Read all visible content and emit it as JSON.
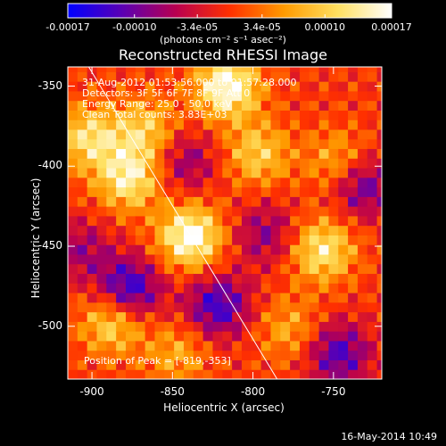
{
  "footer": {
    "timestamp": "16-May-2014 10:49"
  },
  "colorbar": {
    "units_label": "(photons cm⁻² s⁻¹ asec⁻²)",
    "ticks": [
      "-0.00017",
      "-0.00010",
      "-3.4e-05",
      "3.4e-05",
      "0.00010",
      "0.00017"
    ],
    "tick_values": [
      -0.00017,
      -0.0001,
      -3.4e-05,
      3.4e-05,
      0.0001,
      0.00017
    ],
    "range": [
      -0.00017,
      0.00017
    ],
    "colors": [
      "#0000ff",
      "#5a00b4",
      "#b80050",
      "#ff3000",
      "#ff9a00",
      "#ffe060",
      "#ffffff"
    ]
  },
  "info": {
    "line1": "31-Aug-2012 01:53:56.000 to 01:57:28.000",
    "line2": "Detectors: 3F 5F 6F 7F 8F 9F Att 0",
    "line3": "Energy Range: 25.0 - 50.0 keV",
    "line4": "Clean    Total counts: 3.83E+03",
    "peak": "Position of Peak = [-819,-353]"
  },
  "chart_data": {
    "type": "heatmap",
    "title": "Reconstructed RHESSI Image",
    "xlabel": "Heliocentric X (arcsec)",
    "ylabel": "Heliocentric Y (arcsec)",
    "xlim": [
      -915,
      -720
    ],
    "ylim": [
      -533,
      -338
    ],
    "xticks": [
      -900,
      -850,
      -800,
      -750
    ],
    "xtick_labels": [
      "-900",
      "-850",
      "-800",
      "-750"
    ],
    "yticks": [
      -350,
      -400,
      -450,
      -500
    ],
    "ytick_labels": [
      "-350",
      "-400",
      "-450",
      "-500"
    ],
    "peak_position": [
      -819,
      -353
    ],
    "limb_line": [
      [
        -905,
        -333
      ],
      [
        -785,
        -533
      ]
    ],
    "colormap": "rhessi-blue-white",
    "bright_sources": [
      {
        "x": -842,
        "y": -447,
        "intensity": 0.00017
      },
      {
        "x": -819,
        "y": -353,
        "intensity": 0.00017
      },
      {
        "x": -880,
        "y": -410,
        "intensity": 0.00014
      },
      {
        "x": -760,
        "y": -455,
        "intensity": 0.00013
      },
      {
        "x": -905,
        "y": -385,
        "intensity": 0.00012
      },
      {
        "x": -890,
        "y": -500,
        "intensity": 0.00012
      },
      {
        "x": -870,
        "y": -380,
        "intensity": 0.0001
      },
      {
        "x": -800,
        "y": -395,
        "intensity": 0.0001
      },
      {
        "x": -750,
        "y": -400,
        "intensity": 8e-05
      },
      {
        "x": -780,
        "y": -505,
        "intensity": 7e-05
      },
      {
        "x": -850,
        "y": -520,
        "intensity": 7e-05
      }
    ],
    "dim_sources": [
      {
        "x": -880,
        "y": -480,
        "intensity": -0.00015
      },
      {
        "x": -825,
        "y": -490,
        "intensity": -0.00013
      },
      {
        "x": -735,
        "y": -415,
        "intensity": -0.00011
      },
      {
        "x": -750,
        "y": -520,
        "intensity": -0.00012
      },
      {
        "x": -845,
        "y": -400,
        "intensity": -8e-05
      },
      {
        "x": -795,
        "y": -445,
        "intensity": -8e-05
      },
      {
        "x": -910,
        "y": -455,
        "intensity": -7e-05
      }
    ]
  }
}
